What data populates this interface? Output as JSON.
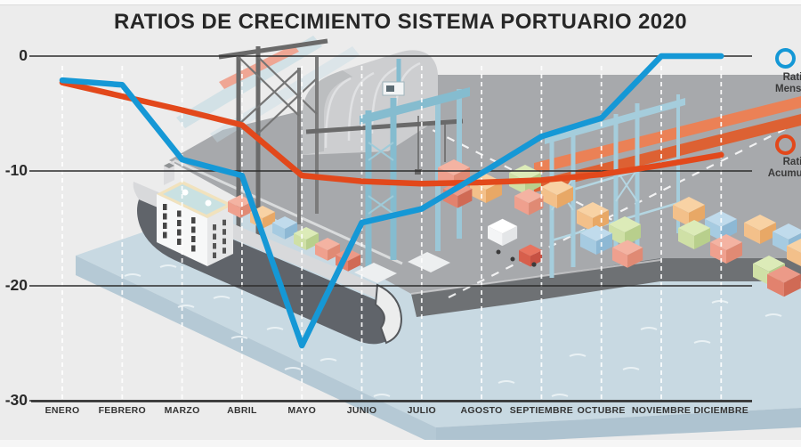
{
  "title": "RATIOS DE CRECIMIENTO SISTEMA PORTUARIO 2020",
  "legend": {
    "items": [
      {
        "name": "Ratio",
        "qualifier": "Mensual",
        "color": "#1598d6"
      },
      {
        "name": "Ratio",
        "qualifier": "Acumulado",
        "color": "#e2481b"
      }
    ]
  },
  "chart_data": {
    "type": "line",
    "title": "RATIOS DE CRECIMIENTO SISTEMA PORTUARIO 2020",
    "categories": [
      "ENERO",
      "FEBRERO",
      "MARZO",
      "ABRIL",
      "MAYO",
      "JUNIO",
      "JULIO",
      "AGOSTO",
      "SEPTIEMBRE",
      "OCTUBRE",
      "NOVIEMBRE",
      "DICIEMBRE"
    ],
    "series": [
      {
        "name": "Ratio Mensual",
        "color": "#1598d6",
        "values": [
          -2.1,
          -2.5,
          -9.0,
          -10.4,
          -25.2,
          -14.5,
          -13.3,
          -10.2,
          -7.0,
          -5.4,
          0,
          0
        ]
      },
      {
        "name": "Ratio Acumulado",
        "color": "#e2481b",
        "values": [
          -2.3,
          -3.5,
          -4.7,
          -6.0,
          -10.4,
          -10.9,
          -11.1,
          -11.0,
          -10.8,
          -10.3,
          -9.5,
          -8.6
        ]
      }
    ],
    "xlabel": "",
    "ylabel": "",
    "y_ticks": [
      0,
      -10,
      -20,
      -30
    ],
    "ylim": [
      -30,
      0
    ],
    "grid": "horizontal solid dark lines per 10 units; vertical white dashed line per month",
    "legend_position": "right",
    "background": "isometric port illustration: container ship, cranes, warehouse, container stacks, truck, water"
  }
}
